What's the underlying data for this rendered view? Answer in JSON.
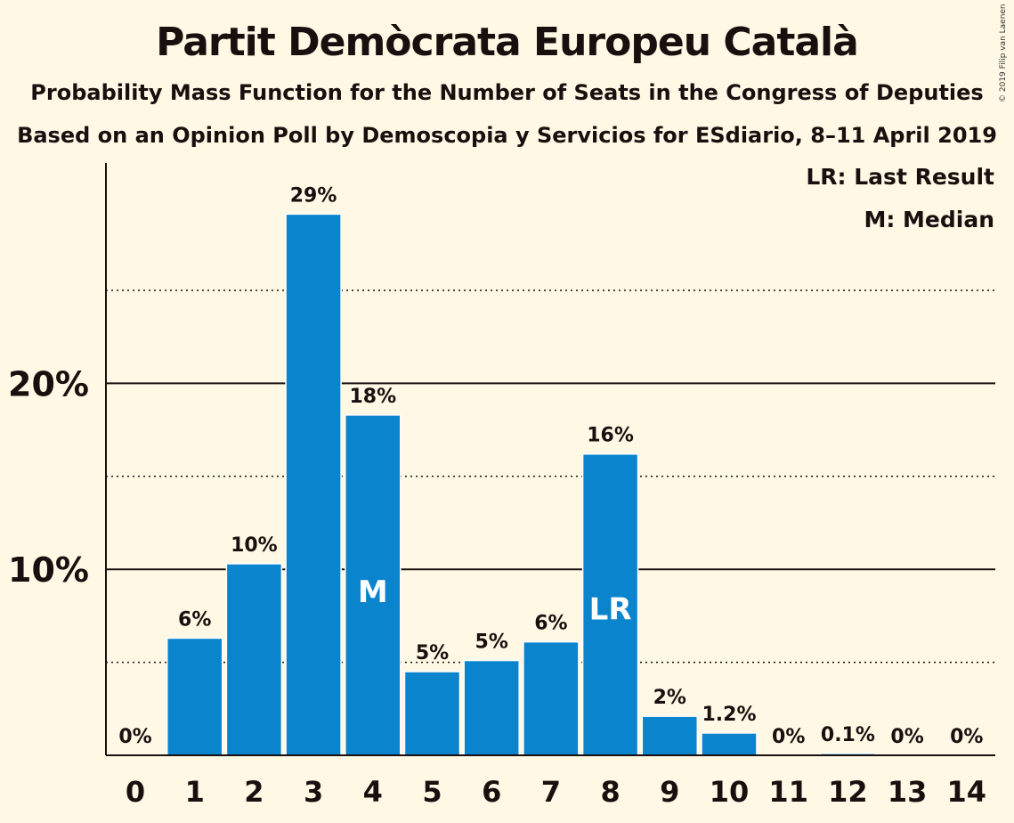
{
  "title": "Partit Demòcrata Europeu Català",
  "subtitle_1": "Probability Mass Function for the Number of Seats in the Congress of Deputies",
  "subtitle_2": "Based on an Opinion Poll by Demoscopia y Servicios for ESdiario, 8–11 April 2019",
  "copyright": "© 2019 Filip van Laenen",
  "legend": {
    "last_result": "LR: Last Result",
    "median": "M: Median"
  },
  "colors": {
    "bar": "#0a84cc",
    "background": "#fff8e4"
  },
  "chart_data": {
    "type": "bar",
    "categories": [
      "0",
      "1",
      "2",
      "3",
      "4",
      "5",
      "6",
      "7",
      "8",
      "9",
      "10",
      "11",
      "12",
      "13",
      "14"
    ],
    "values": [
      0,
      6.3,
      10.3,
      29.1,
      18.3,
      4.5,
      5.1,
      6.1,
      16.2,
      2.1,
      1.2,
      0,
      0.1,
      0,
      0
    ],
    "value_labels": [
      "0%",
      "6%",
      "10%",
      "29%",
      "18%",
      "5%",
      "5%",
      "6%",
      "16%",
      "2%",
      "1.2%",
      "0%",
      "0.1%",
      "0%",
      "0%"
    ],
    "ylim": [
      0,
      31.8
    ],
    "y_major_ticks": [
      10,
      20
    ],
    "y_major_tick_labels": [
      "10%",
      "20%"
    ],
    "y_minor_gridlines": [
      5,
      15,
      25
    ],
    "median_seat": 4,
    "median_marker": "M",
    "last_result_seat": 8,
    "last_result_marker": "LR"
  }
}
